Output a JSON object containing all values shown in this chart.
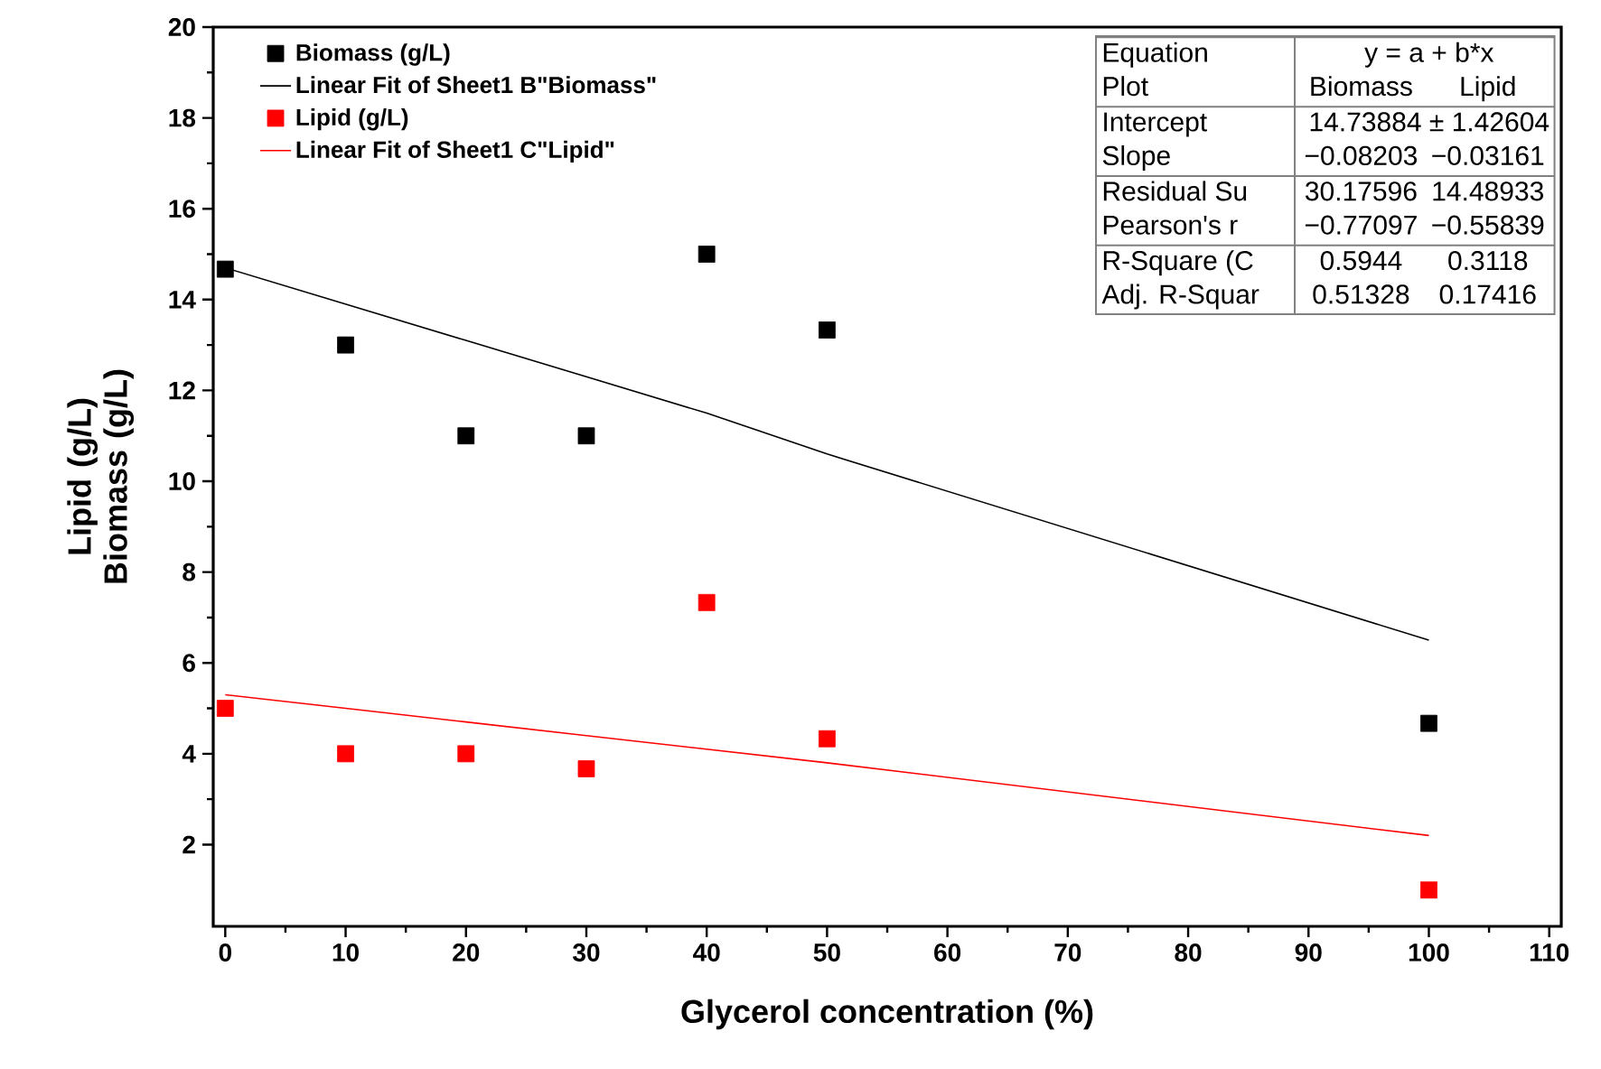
{
  "chart_data": {
    "type": "scatter",
    "xlabel": "Glycerol concentration (%)",
    "ylabel": "Lipid (g/L) Biomass (g/L)",
    "xlim": [
      -1,
      111
    ],
    "ylim": [
      0.2,
      20
    ],
    "xticks": [
      0,
      10,
      20,
      30,
      40,
      50,
      60,
      70,
      80,
      90,
      100,
      110
    ],
    "yticks": [
      2,
      4,
      6,
      8,
      10,
      12,
      14,
      16,
      18,
      20
    ],
    "x": [
      0,
      10,
      20,
      30,
      40,
      50,
      100
    ],
    "marker": "square",
    "legend": "top left",
    "grid": false,
    "series": [
      {
        "name": "Biomass (g/L)",
        "color": "#000000",
        "values": [
          14.67,
          13,
          11,
          11,
          15,
          13.33,
          4.67
        ]
      },
      {
        "name": "Linear Fit of Sheet1 B\"Biomass\"",
        "type": "line",
        "marker": "none",
        "color": "#000000",
        "values": [
          14.7,
          13.9,
          13.1,
          12.3,
          11.5,
          10.6,
          6.5
        ]
      },
      {
        "name": "Lipid (g/L)",
        "color": "#ff0000",
        "values": [
          5,
          4,
          4,
          3.67,
          7.33,
          4.33,
          1
        ]
      },
      {
        "name": "Linear Fit of Sheet1 C\"Lipid\"",
        "type": "line",
        "marker": "none",
        "color": "#ff0000",
        "values": [
          5.3,
          5.0,
          4.7,
          4.4,
          4.1,
          3.8,
          2.2
        ]
      }
    ],
    "annotations": [
      "Equation",
      "y = a + b*x",
      "Plot",
      "Biomass",
      "Lipid",
      "Intercept",
      "14.73884 ± 1.42604",
      "Slope",
      "−0.08203",
      "−0.03161",
      "Residual Su",
      "30.17596",
      "14.48933",
      "Pearson's r",
      "−0.77097",
      "−0.55839",
      "R-Square (C",
      "0.5944",
      "0.3118",
      "Adj. R-Squar",
      "0.51328",
      "0.17416"
    ]
  }
}
